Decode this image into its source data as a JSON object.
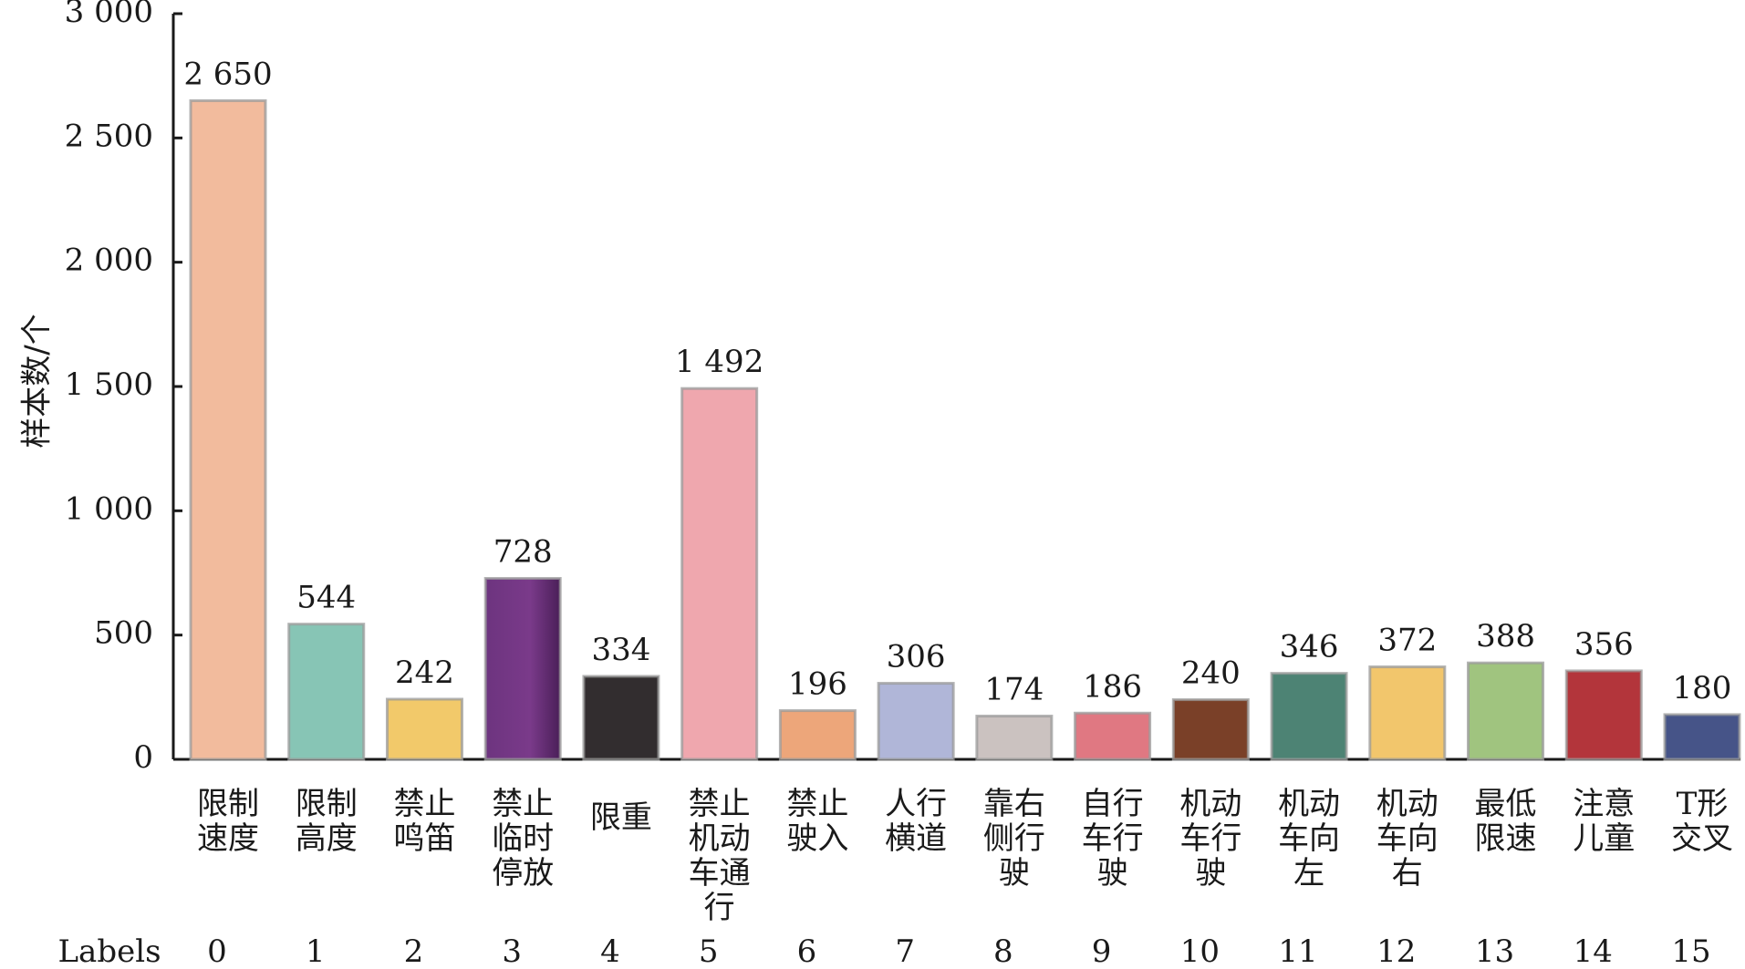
{
  "chart_data": {
    "type": "bar",
    "ylabel": "样本数/个",
    "ylim": [
      0,
      3000
    ],
    "yticks": [
      0,
      500,
      1000,
      1500,
      2000,
      2500,
      3000
    ],
    "ytick_labels": [
      "0",
      "500",
      "1 000",
      "1 500",
      "2 000",
      "2 500",
      "3 000"
    ],
    "index_prefix": "Labels",
    "indices": [
      "0",
      "1",
      "2",
      "3",
      "4",
      "5",
      "6",
      "7",
      "8",
      "9",
      "10",
      "11",
      "12",
      "13",
      "14",
      "15"
    ],
    "categories": [
      [
        "限制",
        "速度"
      ],
      [
        "限制",
        "高度"
      ],
      [
        "禁止",
        "鸣笛"
      ],
      [
        "禁止",
        "临时",
        "停放"
      ],
      [
        "限重"
      ],
      [
        "禁止",
        "机动",
        "车通",
        "行"
      ],
      [
        "禁止",
        "驶入"
      ],
      [
        "人行",
        "横道"
      ],
      [
        "靠右",
        "侧行",
        "驶"
      ],
      [
        "自行",
        "车行",
        "驶"
      ],
      [
        "机动",
        "车行",
        "驶"
      ],
      [
        "机动",
        "车向",
        "左"
      ],
      [
        "机动",
        "车向",
        "右"
      ],
      [
        "最低",
        "限速"
      ],
      [
        "注意",
        "儿童"
      ],
      [
        "T形",
        "交叉"
      ]
    ],
    "values": [
      2650,
      544,
      242,
      728,
      334,
      1492,
      196,
      306,
      174,
      186,
      240,
      346,
      372,
      388,
      356,
      180
    ],
    "value_labels": [
      "2 650",
      "544",
      "242",
      "728",
      "334",
      "1 492",
      "196",
      "306",
      "174",
      "186",
      "240",
      "346",
      "372",
      "388",
      "356",
      "180"
    ],
    "colors": [
      "#F2BB9D",
      "#87C5B5",
      "#F2C96A",
      "#6D347F",
      "#322D2F",
      "#EFA7AE",
      "#EDA67A",
      "#B0B6D8",
      "#CBC2C0",
      "#E07882",
      "#7A4028",
      "#4D8374",
      "#F2C66C",
      "#A0C47F",
      "#B3353B",
      "#465488"
    ],
    "grid": false,
    "legend": "none"
  }
}
